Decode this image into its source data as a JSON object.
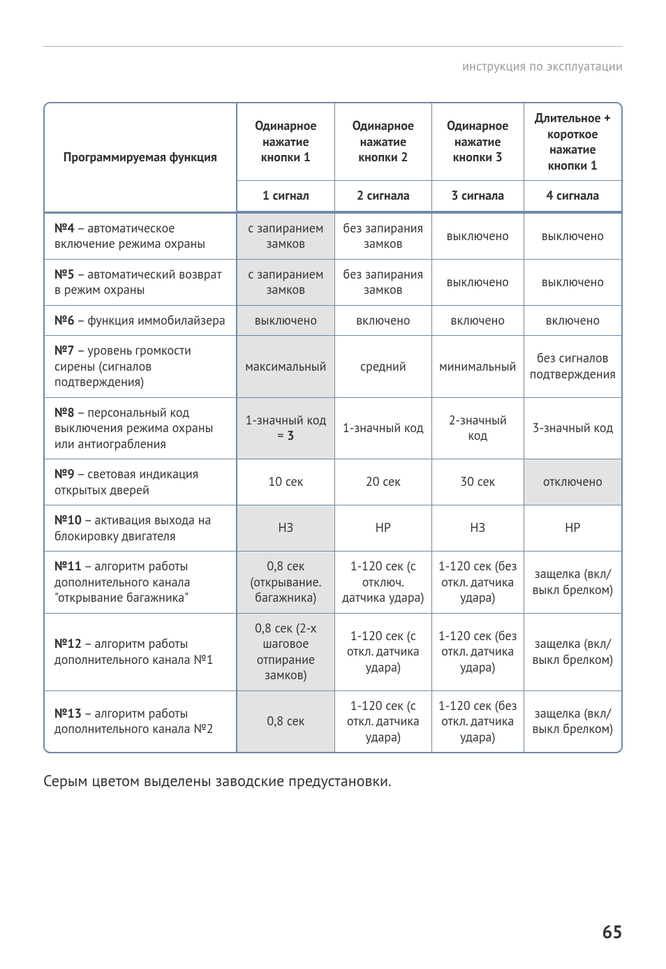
{
  "header": {
    "section_label": "инструкция по эксплуатации"
  },
  "table": {
    "columns": {
      "func": "Программируемая функция",
      "btn1": "Одинарное нажатие кнопки 1",
      "btn2": "Одинарное нажатие кнопки 2",
      "btn3": "Одинарное нажатие кнопки 3",
      "btn1_long_short": "Длительное + короткое нажатие кнопки 1",
      "sig1": "1 сигнал",
      "sig2": "2 сигнала",
      "sig3": "3 сигнала",
      "sig4": "4 сигнала"
    },
    "rows": [
      {
        "num": "№4",
        "label": " – автоматическое включение режима охраны",
        "c1": "с запиранием замков",
        "c1_preset": true,
        "c2": "без запирания замков",
        "c3": "выключено",
        "c4": "выключено"
      },
      {
        "num": "№5",
        "label": " – автоматический возврат в режим охраны",
        "c1": "с запиранием замков",
        "c1_preset": true,
        "c2": "без запирания замков",
        "c3": "выключено",
        "c4": "выключено"
      },
      {
        "num": "№6",
        "label": " – функция иммобилайзера",
        "c1": "выключено",
        "c1_preset": true,
        "c2": "включено",
        "c3": "включено",
        "c4": "включено"
      },
      {
        "num": "№7",
        "label": " – уровень громкости сирены (сигналов подтверждения)",
        "c1": "максимальный",
        "c1_preset": true,
        "c2": "средний",
        "c3": "минимальный",
        "c4": "без сигналов подтверждения"
      },
      {
        "num": "№8",
        "label": " – персональный код выключения режима охраны или антиограбления",
        "c1_html": "1-значный код = <b>3</b>",
        "c1_preset": true,
        "c2": "1-значный код",
        "c3": "2-значный код",
        "c4": "3-значный код"
      },
      {
        "num": "№9",
        "label": " – световая индикация открытых дверей",
        "c1": "10 сек",
        "c2": "20 сек",
        "c3": "30 сек",
        "c4": "отключено",
        "c4_preset": true
      },
      {
        "num": "№10",
        "label": " – активация выхода на блокировку двигателя",
        "c1": "НЗ",
        "c1_preset": true,
        "c2": "НР",
        "c3": "НЗ",
        "c4": "НР"
      },
      {
        "num": "№11",
        "label": " – алгоритм работы дополнительного канала \"открывание багажника\"",
        "c1": "0,8 сек (открывание. багажника)",
        "c1_preset": true,
        "c2": "1-120 сек (с отключ. датчика удара)",
        "c3": "1-120 сек (без откл. датчика удара)",
        "c4": "защелка (вкл/выкл брелком)"
      },
      {
        "num": "№12",
        "label": " – алгоритм работы дополнительного канала  №1",
        "c1": "0,8 сек (2-х шаговое отпирание замков)",
        "c1_preset": true,
        "c2": "1-120 сек (с откл. датчика удара)",
        "c3": "1-120 сек (без откл. датчика удара)",
        "c4": "защелка (вкл/выкл брелком)"
      },
      {
        "num": "№13",
        "label": " – алгоритм работы дополнительного канала  №2",
        "c1": "0,8 сек",
        "c1_preset": true,
        "c2": "1-120 сек (с откл. датчика удара)",
        "c3": "1-120 сек (без откл. датчика удара)",
        "c4": "защелка (вкл/выкл брелком)"
      }
    ],
    "preset_bg": "#e3e3e3",
    "border_color": "#6f8aa5"
  },
  "note": "Серым цветом выделены заводские предустановки.",
  "page_number": "65",
  "col_widths_pct": [
    34,
    17,
    17,
    16,
    16
  ]
}
